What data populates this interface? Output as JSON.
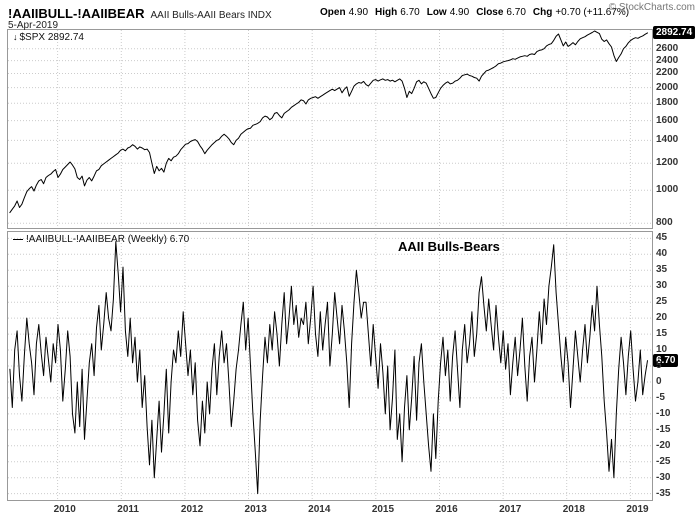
{
  "header": {
    "symbol": "!AAIIBULL-!AAIIBEAR",
    "description": "AAII Bulls-AAII Bears INDX",
    "date": "5-Apr-2019",
    "open_label": "Open",
    "open": "4.90",
    "high_label": "High",
    "high": "6.70",
    "low_label": "Low",
    "low": "4.90",
    "close_label": "Close",
    "close": "6.70",
    "chg_label": "Chg",
    "chg": "+0.70 (+11.67%)",
    "copyright": "© StockCharts.com"
  },
  "panels": {
    "spx": {
      "label": "$SPX 2892.74",
      "last_value": "2892.74"
    },
    "osc": {
      "label": "!AAIIBULL-!AAIIBEAR (Weekly) 6.70",
      "annotation": "AAII Bulls-Bears",
      "last_value": "6.70"
    }
  },
  "icons": {
    "line_marker_top": "↓",
    "line_sample": "—"
  },
  "colors": {
    "line": "#000000",
    "grid": "#cccccc",
    "border": "#999999",
    "value_box_bg": "#000000",
    "value_box_text": "#ffffff"
  },
  "x_axis": {
    "years": [
      2010,
      2011,
      2012,
      2013,
      2014,
      2015,
      2016,
      2017,
      2018,
      2019
    ],
    "xlim_years": [
      2009.22,
      2019.34
    ]
  },
  "chart_data": [
    {
      "type": "line",
      "name": "$SPX",
      "panel": "top",
      "scale": "log",
      "x0": 2009.25,
      "x1": 2019.27,
      "ylim": [
        775,
        2950
      ],
      "yticks": [
        2600,
        2400,
        2200,
        2000,
        1800,
        1600,
        1400,
        1200,
        1000,
        800
      ],
      "last_value": 2892.74,
      "values": [
        860,
        880,
        900,
        930,
        890,
        910,
        950,
        990,
        1010,
        1025,
        995,
        1035,
        1065,
        1075,
        1045,
        1090,
        1105,
        1115,
        1135,
        1150,
        1090,
        1115,
        1150,
        1170,
        1190,
        1210,
        1185,
        1155,
        1090,
        1075,
        1100,
        1030,
        1070,
        1090,
        1065,
        1100,
        1140,
        1150,
        1180,
        1195,
        1210,
        1225,
        1240,
        1255,
        1270,
        1285,
        1310,
        1320,
        1305,
        1330,
        1340,
        1360,
        1345,
        1320,
        1340,
        1330,
        1315,
        1320,
        1290,
        1200,
        1120,
        1175,
        1140,
        1160,
        1130,
        1200,
        1240,
        1220,
        1250,
        1258,
        1280,
        1315,
        1340,
        1365,
        1370,
        1390,
        1400,
        1408,
        1390,
        1350,
        1320,
        1280,
        1310,
        1335,
        1360,
        1380,
        1400,
        1410,
        1440,
        1460,
        1440,
        1415,
        1380,
        1360,
        1400,
        1420,
        1460,
        1480,
        1500,
        1515,
        1520,
        1550,
        1560,
        1570,
        1590,
        1630,
        1650,
        1640,
        1610,
        1630,
        1680,
        1690,
        1655,
        1630,
        1680,
        1700,
        1720,
        1750,
        1770,
        1790,
        1810,
        1840,
        1830,
        1790,
        1840,
        1860,
        1870,
        1880,
        1860,
        1880,
        1900,
        1920,
        1940,
        1960,
        1978,
        1960,
        1980,
        2000,
        1930,
        1978,
        2010,
        1885,
        1950,
        2020,
        2050,
        2070,
        2060,
        2085,
        2040,
        2020,
        2060,
        2100,
        2110,
        2090,
        2108,
        2120,
        2100,
        2110,
        2090,
        2102,
        2080,
        2100,
        2120,
        2090,
        1990,
        1870,
        1950,
        1920,
        1990,
        2080,
        2100,
        2050,
        2080,
        2060,
        1990,
        1920,
        1860,
        1870,
        1930,
        1990,
        2030,
        2060,
        2080,
        2050,
        2060,
        2090,
        2100,
        2130,
        2170,
        2180,
        2190,
        2170,
        2160,
        2140,
        2130,
        2090,
        2160,
        2200,
        2240,
        2250,
        2270,
        2290,
        2315,
        2350,
        2360,
        2380,
        2390,
        2400,
        2410,
        2430,
        2420,
        2440,
        2460,
        2470,
        2480,
        2470,
        2500,
        2510,
        2500,
        2550,
        2570,
        2580,
        2600,
        2650,
        2675,
        2690,
        2750,
        2830,
        2872,
        2760,
        2650,
        2720,
        2640,
        2670,
        2710,
        2670,
        2730,
        2780,
        2800,
        2820,
        2850,
        2875,
        2900,
        2930,
        2905,
        2880,
        2770,
        2730,
        2760,
        2690,
        2630,
        2485,
        2385,
        2450,
        2510,
        2600,
        2640,
        2705,
        2750,
        2780,
        2800,
        2790,
        2815,
        2835,
        2865,
        2892.74
      ]
    },
    {
      "type": "line",
      "name": "!AAIIBULL-!AAIIBEAR (Weekly)",
      "panel": "bottom",
      "scale": "linear",
      "x0": 2009.25,
      "x1": 2019.27,
      "ylim": [
        -37,
        47
      ],
      "yticks": [
        45,
        40,
        35,
        30,
        25,
        20,
        15,
        10,
        5,
        0,
        -5,
        -10,
        -15,
        -20,
        -25,
        -30,
        -35
      ],
      "last_value": 6.7,
      "title": "AAII Bulls-Bears",
      "values": [
        4,
        -8,
        10,
        16,
        2,
        -6,
        8,
        20,
        12,
        6,
        -4,
        12,
        18,
        9,
        2,
        14,
        7,
        0,
        12,
        6,
        18,
        10,
        -6,
        4,
        16,
        8,
        -10,
        -16,
        0,
        -14,
        4,
        -18,
        -6,
        6,
        12,
        2,
        17,
        24,
        10,
        18,
        28,
        20,
        16,
        26,
        44,
        34,
        22,
        36,
        16,
        8,
        20,
        6,
        14,
        0,
        10,
        -8,
        2,
        -14,
        -26,
        -12,
        -30,
        -18,
        -6,
        -22,
        -10,
        4,
        -16,
        0,
        10,
        6,
        16,
        8,
        22,
        12,
        2,
        10,
        -4,
        6,
        -12,
        -20,
        -6,
        -16,
        0,
        -10,
        4,
        12,
        -4,
        8,
        16,
        6,
        12,
        0,
        -14,
        -6,
        4,
        10,
        18,
        25,
        10,
        20,
        5,
        -10,
        -22,
        -35,
        -12,
        2,
        14,
        6,
        18,
        10,
        22,
        15,
        5,
        18,
        28,
        12,
        20,
        30,
        18,
        24,
        14,
        20,
        18,
        25,
        12,
        20,
        30,
        15,
        8,
        22,
        10,
        18,
        25,
        5,
        15,
        28,
        20,
        12,
        24,
        16,
        6,
        -8,
        12,
        25,
        35,
        28,
        20,
        25,
        25,
        15,
        5,
        18,
        8,
        -2,
        12,
        3,
        -10,
        5,
        -15,
        -5,
        10,
        -18,
        -10,
        -25,
        -8,
        2,
        -15,
        -5,
        8,
        -12,
        6,
        12,
        0,
        -10,
        -20,
        -28,
        -10,
        -24,
        -6,
        6,
        14,
        2,
        10,
        -6,
        8,
        16,
        4,
        -8,
        10,
        18,
        6,
        12,
        22,
        8,
        15,
        28,
        33,
        24,
        16,
        26,
        18,
        10,
        24,
        14,
        6,
        16,
        4,
        12,
        -4,
        6,
        14,
        2,
        10,
        20,
        5,
        -6,
        8,
        14,
        0,
        10,
        22,
        12,
        26,
        18,
        30,
        36,
        43,
        28,
        18,
        8,
        0,
        14,
        6,
        -8,
        4,
        16,
        8,
        0,
        10,
        18,
        6,
        14,
        24,
        16,
        30,
        18,
        8,
        -6,
        -16,
        -28,
        -18,
        -30,
        -10,
        4,
        14,
        6,
        -4,
        8,
        16,
        4,
        -6,
        0,
        10,
        -4,
        2,
        6.7
      ]
    }
  ]
}
